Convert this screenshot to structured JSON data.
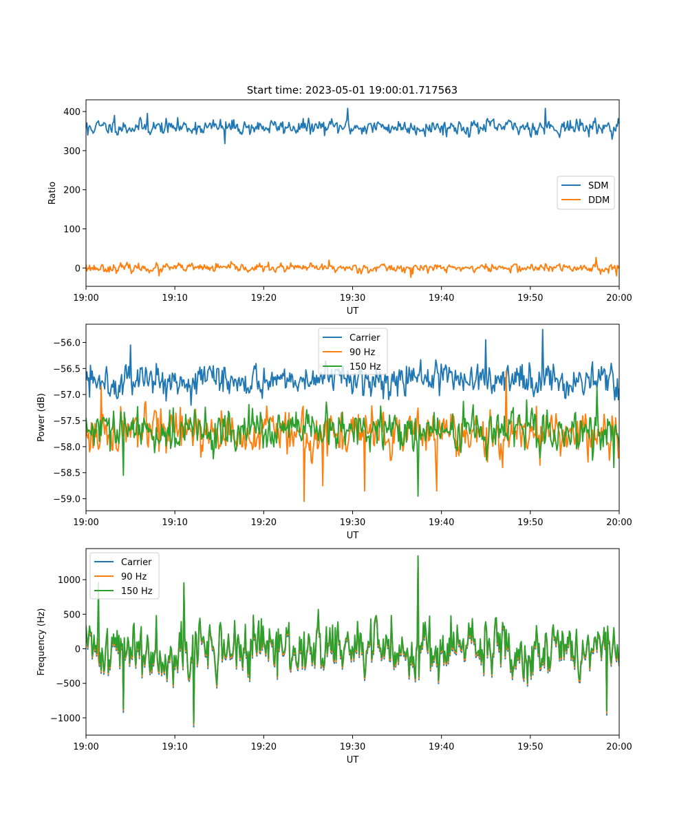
{
  "figure": {
    "title": "Start time: 2023-05-01 19:00:01.717563"
  },
  "chart_data": [
    {
      "type": "line",
      "title": "Start time: 2023-05-01 19:00:01.717563",
      "xlabel": "UT",
      "ylabel": "Ratio",
      "xlim": [
        "19:00",
        "20:00"
      ],
      "ylim": [
        -47,
        430
      ],
      "x_ticks": [
        "19:00",
        "19:10",
        "19:20",
        "19:30",
        "19:40",
        "19:50",
        "20:00"
      ],
      "y_ticks": [
        0,
        100,
        200,
        300,
        400
      ],
      "y_tick_labels": [
        "0",
        "100",
        "200",
        "300",
        "400"
      ],
      "legend": {
        "placement": "center-right"
      },
      "series": [
        {
          "name": "SDM",
          "color": "#1f77b4",
          "mean": 360,
          "noise": 14,
          "n": 600,
          "seed": 11,
          "spikes": [
            [
              6.9,
              395
            ],
            [
              29.4,
              408
            ],
            [
              51.7,
              408
            ],
            [
              0.2,
              340
            ],
            [
              15.6,
              318
            ],
            [
              3.2,
              390
            ],
            [
              59.9,
              382
            ]
          ]
        },
        {
          "name": "DDM",
          "color": "#ff7f0e",
          "mean": 0,
          "noise": 8,
          "n": 600,
          "seed": 23,
          "spikes": [
            [
              57.4,
              27
            ],
            [
              59.7,
              -20
            ],
            [
              36.6,
              -24
            ],
            [
              27.3,
              20
            ],
            [
              8.2,
              -20
            ],
            [
              0.0,
              10
            ]
          ]
        }
      ]
    },
    {
      "type": "line",
      "xlabel": "UT",
      "ylabel": "Power (dB)",
      "xlim": [
        "19:00",
        "20:00"
      ],
      "ylim": [
        -59.23,
        -55.65
      ],
      "x_ticks": [
        "19:00",
        "19:10",
        "19:20",
        "19:30",
        "19:40",
        "19:50",
        "20:00"
      ],
      "y_ticks": [
        -56.0,
        -56.5,
        -57.0,
        -57.5,
        -58.0,
        -58.5,
        -59.0
      ],
      "y_tick_labels": [
        "−56.0",
        "−56.5",
        "−57.0",
        "−57.5",
        "−58.0",
        "−58.5",
        "−59.0"
      ],
      "legend": {
        "placement": "top-center"
      },
      "series": [
        {
          "name": "Carrier",
          "color": "#1f77b4",
          "mean": -56.7,
          "noise": 0.22,
          "n": 600,
          "seed": 5,
          "spikes": [
            [
              51.4,
              -55.75
            ],
            [
              0.4,
              -57.05
            ],
            [
              45.0,
              -55.95
            ],
            [
              59.9,
              -57.1
            ],
            [
              5.0,
              -56.05
            ]
          ]
        },
        {
          "name": "90 Hz",
          "color": "#ff7f0e",
          "mean": -57.75,
          "noise": 0.3,
          "n": 600,
          "seed": 17,
          "spikes": [
            [
              24.5,
              -59.05
            ],
            [
              1.7,
              -56.85
            ],
            [
              47.3,
              -56.55
            ],
            [
              26.6,
              -58.75
            ],
            [
              31.4,
              -58.85
            ],
            [
              39.5,
              -58.85
            ]
          ]
        },
        {
          "name": "150 Hz",
          "color": "#2ca02c",
          "mean": -57.7,
          "noise": 0.28,
          "n": 600,
          "seed": 29,
          "spikes": [
            [
              37.4,
              -58.95
            ],
            [
              57.5,
              -56.85
            ],
            [
              4.2,
              -58.55
            ],
            [
              59.4,
              -58.4
            ]
          ]
        }
      ]
    },
    {
      "type": "line",
      "xlabel": "UT",
      "ylabel": "Frequency (Hz)",
      "xlim": [
        "19:00",
        "20:00"
      ],
      "ylim": [
        -1250,
        1450
      ],
      "x_ticks": [
        "19:00",
        "19:10",
        "19:20",
        "19:30",
        "19:40",
        "19:50",
        "20:00"
      ],
      "y_ticks": [
        1000,
        500,
        0,
        -500,
        -1000
      ],
      "y_tick_labels": [
        "1000",
        "500",
        "0",
        "−500",
        "−1000"
      ],
      "legend": {
        "placement": "top-left"
      },
      "series": [
        {
          "name": "Carrier",
          "color": "#1f77b4",
          "mean": -30,
          "noise": 300,
          "n": 600,
          "seed": 41,
          "spikes": [
            [
              12.1,
              -1130
            ],
            [
              37.4,
              1330
            ],
            [
              4.2,
              -920
            ],
            [
              58.6,
              -960
            ],
            [
              11.0,
              900
            ]
          ]
        },
        {
          "name": "90 Hz",
          "color": "#ff7f0e",
          "mean": -10,
          "noise": 300,
          "n": 600,
          "seed": 41,
          "spikes": [
            [
              12.1,
              -1100
            ],
            [
              37.4,
              1340
            ],
            [
              4.2,
              -890
            ],
            [
              58.6,
              -930
            ],
            [
              11.0,
              930
            ]
          ]
        },
        {
          "name": "150 Hz",
          "color": "#2ca02c",
          "mean": 15,
          "noise": 300,
          "n": 600,
          "seed": 41,
          "spikes": [
            [
              12.1,
              -1080
            ],
            [
              37.4,
              1345
            ],
            [
              4.2,
              -870
            ],
            [
              58.6,
              -900
            ],
            [
              11.0,
              955
            ],
            [
              1.4,
              960
            ]
          ]
        }
      ]
    }
  ]
}
